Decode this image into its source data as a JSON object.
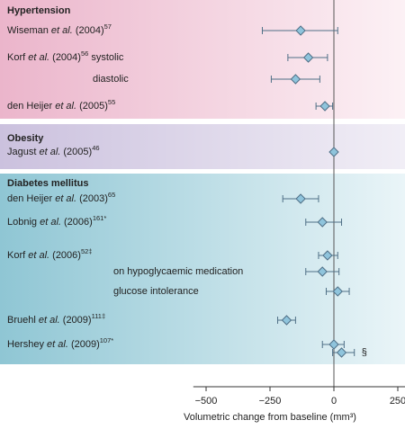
{
  "chart_data": {
    "type": "forest",
    "x_label": "Volumetric change from baseline (mm³)",
    "xlim": [
      -550,
      280
    ],
    "xticks": [
      {
        "value": -500,
        "label": "−500"
      },
      {
        "value": -250,
        "label": "−250"
      },
      0,
      250
    ],
    "point_color": "#8fc4dc",
    "line_color": "#4f6f86",
    "sections": [
      {
        "title": "Hypertension",
        "rows": [
          {
            "author": "Wiseman ",
            "et_al": "et al.",
            "year": " (2004)",
            "ref": "57",
            "value": -130,
            "ci": [
              -280,
              15
            ]
          },
          {
            "author": "Korf ",
            "et_al": "et al.",
            "year": " (2004)",
            "ref": "56",
            "extra": " systolic",
            "value": -100,
            "ci": [
              -180,
              -25
            ]
          },
          {
            "extra": "diastolic",
            "value": -150,
            "ci": [
              -245,
              -55
            ]
          },
          {
            "author": "den Heijer ",
            "et_al": "et al.",
            "year": " (2005)",
            "ref": "55",
            "value": -35,
            "ci": [
              -70,
              -5
            ]
          }
        ]
      },
      {
        "title": "Obesity",
        "rows": [
          {
            "author": "Jagust ",
            "et_al": "et al.",
            "year": " (2005)",
            "ref": "46",
            "value": 0
          }
        ]
      },
      {
        "title": "Diabetes mellitus",
        "rows": [
          {
            "author": "den Heijer ",
            "et_al": "et al.",
            "year": " (2003)",
            "ref": "65",
            "value": -130,
            "ci": [
              -200,
              -60
            ]
          },
          {
            "author": "Lobnig ",
            "et_al": "et al.",
            "year": " (2006)",
            "ref": "161*",
            "value": -45,
            "ci": [
              -110,
              30
            ]
          },
          {
            "author": "Korf ",
            "et_al": "et al.",
            "year": " (2006)",
            "ref": "52‡",
            "value": -25,
            "ci": [
              -60,
              15
            ]
          },
          {
            "extra": "on hypoglycaemic medication",
            "value": -45,
            "ci": [
              -110,
              20
            ]
          },
          {
            "extra": "glucose intolerance",
            "value": 15,
            "ci": [
              -30,
              60
            ]
          },
          {
            "author": "Bruehl ",
            "et_al": "et al.",
            "year": " (2009)",
            "ref": "111‡",
            "value": -185,
            "ci": [
              -220,
              -150
            ]
          },
          {
            "author": "Hershey ",
            "et_al": "et al.",
            "year": " (2009)",
            "ref": "107*",
            "value": 0,
            "ci": [
              -45,
              40
            ]
          },
          {
            "note": "§",
            "value": 30,
            "ci": [
              -5,
              80
            ]
          }
        ]
      }
    ]
  }
}
